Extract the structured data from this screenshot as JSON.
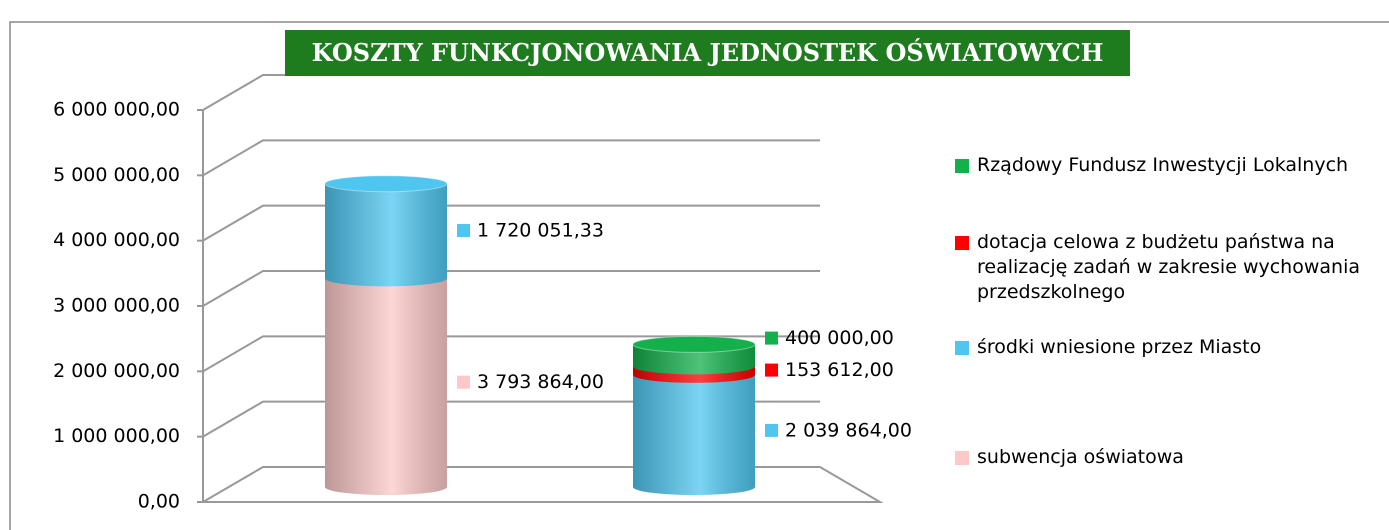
{
  "chart_data": {
    "type": "stacked-cylinder",
    "title": "KOSZTY FUNKCJONOWANIA JEDNOSTEK OŚWIATOWYCH",
    "categories": [
      null,
      null
    ],
    "series": [
      {
        "name": "subwencja oświatowa",
        "color": "#fcc8c8",
        "values": [
          3793864,
          null
        ],
        "value_labels": [
          "3 793 864,00",
          null
        ]
      },
      {
        "name": "środki wniesione przez Miasto",
        "color": "#4fc6ef",
        "values": [
          1720051.33,
          2039864
        ],
        "value_labels": [
          "1 720 051,33",
          "2 039 864,00"
        ]
      },
      {
        "name": "dotacja celowa z budżetu państwa na realizację zadań w zakresie wychowania przedszkolnego",
        "color": "#ff0000",
        "values": [
          null,
          153612
        ],
        "value_labels": [
          null,
          "153 612,00"
        ]
      },
      {
        "name": "Rządowy Fundusz Inwestycji Lokalnych",
        "color": "#14b04c",
        "values": [
          null,
          400000
        ],
        "value_labels": [
          null,
          "400 000,00"
        ]
      }
    ],
    "ylim": [
      0,
      6000000
    ],
    "yticks": [
      {
        "value": 0,
        "label": "0,00"
      },
      {
        "value": 1000000,
        "label": "1 000 000,00"
      },
      {
        "value": 2000000,
        "label": "2 000 000,00"
      },
      {
        "value": 3000000,
        "label": "3 000 000,00"
      },
      {
        "value": 4000000,
        "label": "4 000 000,00"
      },
      {
        "value": 5000000,
        "label": "5 000 000,00"
      },
      {
        "value": 6000000,
        "label": "6 000 000,00"
      }
    ],
    "grid": true
  }
}
